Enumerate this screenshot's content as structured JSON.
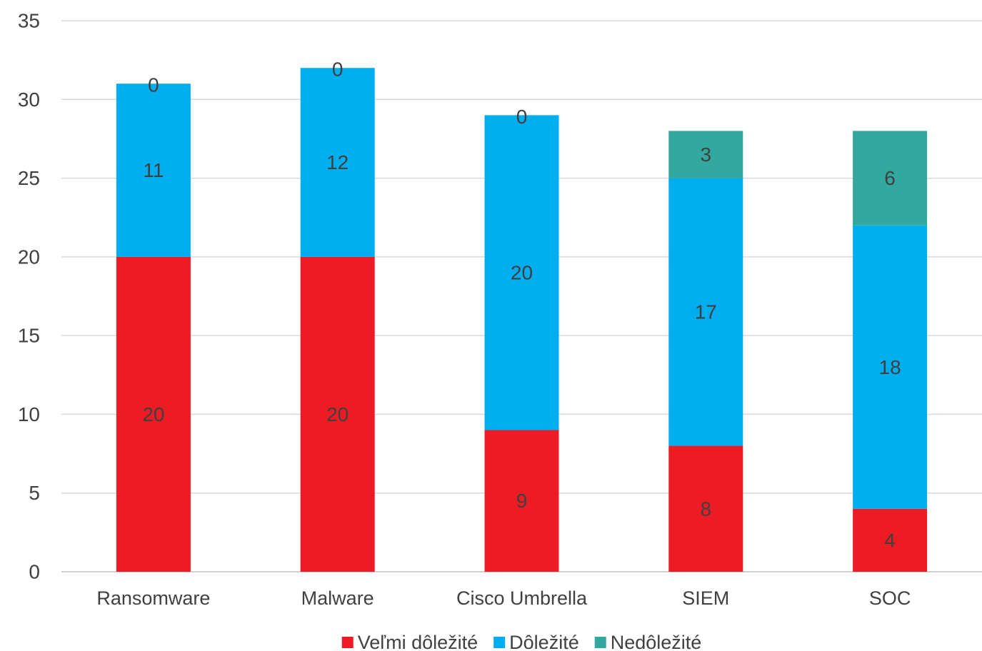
{
  "chart_data": {
    "type": "bar",
    "stacked": true,
    "categories": [
      "Ransomware",
      "Malware",
      "Cisco Umbrella",
      "SIEM",
      "SOC"
    ],
    "series": [
      {
        "name": "Veľmi dôležité",
        "color": "#ED1C24",
        "values": [
          20,
          20,
          9,
          8,
          4
        ]
      },
      {
        "name": "Dôležité",
        "color": "#00AEEF",
        "values": [
          11,
          12,
          20,
          17,
          18
        ]
      },
      {
        "name": "Nedôležité",
        "color": "#33A89E",
        "values": [
          0,
          0,
          0,
          3,
          6
        ]
      }
    ],
    "ylim": [
      0,
      35
    ],
    "yticks": [
      0,
      5,
      10,
      15,
      20,
      25,
      30,
      35
    ],
    "grid": true,
    "legend": "bottom",
    "data_labels": true,
    "title": "",
    "xlabel": "",
    "ylabel": ""
  }
}
